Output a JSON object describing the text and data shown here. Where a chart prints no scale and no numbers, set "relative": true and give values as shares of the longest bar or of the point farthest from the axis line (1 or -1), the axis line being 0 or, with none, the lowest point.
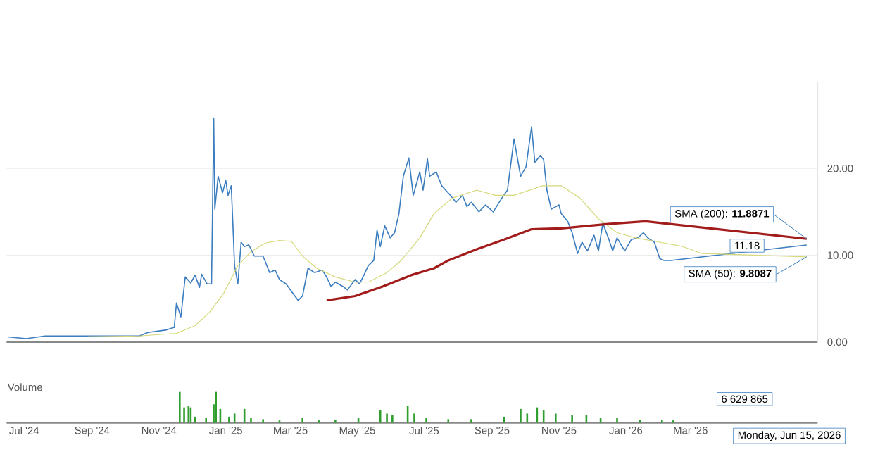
{
  "chart_data": [
    {
      "type": "line",
      "xlim": [
        "2024-06-15",
        "2026-06-25"
      ],
      "ylim": [
        0,
        30
      ],
      "yticks": [
        {
          "value": 0,
          "label": "0.00"
        },
        {
          "value": 10,
          "label": "10.00"
        },
        {
          "value": 20,
          "label": "20.00"
        }
      ],
      "grid": "y",
      "tick_labels": "y",
      "series": [
        {
          "color": "#3b7dbf",
          "x": [
            "2024-06-16",
            "2024-07-03",
            "2024-07-20",
            "2024-08-23",
            "2024-10-14",
            "2024-10-22",
            "2024-11-08",
            "2024-11-15",
            "2024-11-17",
            "2024-11-21",
            "2024-11-25",
            "2024-11-30",
            "2024-12-04",
            "2024-12-08",
            "2024-12-10",
            "2024-12-15",
            "2024-12-19",
            "2024-12-21",
            "2024-12-22",
            "2024-12-25",
            "2024-12-29",
            "2025-01-01",
            "2025-01-03",
            "2025-01-06",
            "2025-01-08",
            "2025-01-09",
            "2025-01-12",
            "2025-01-15",
            "2025-01-18",
            "2025-01-22",
            "2025-01-27",
            "2025-02-04",
            "2025-02-10",
            "2025-02-15",
            "2025-02-19",
            "2025-02-25",
            "2025-03-08",
            "2025-03-12",
            "2025-03-17",
            "2025-03-23",
            "2025-03-30",
            "2025-04-03",
            "2025-04-07",
            "2025-04-11",
            "2025-04-18",
            "2025-04-22",
            "2025-04-29",
            "2025-05-03",
            "2025-05-07",
            "2025-05-11",
            "2025-05-16",
            "2025-05-19",
            "2025-05-22",
            "2025-05-26",
            "2025-05-31",
            "2025-06-04",
            "2025-06-08",
            "2025-06-12",
            "2025-06-17",
            "2025-06-21",
            "2025-06-27",
            "2025-06-30",
            "2025-07-04",
            "2025-07-06",
            "2025-07-12",
            "2025-07-17",
            "2025-07-25",
            "2025-07-30",
            "2025-08-05",
            "2025-08-09",
            "2025-08-13",
            "2025-08-20",
            "2025-08-26",
            "2025-09-02",
            "2025-09-10",
            "2025-09-15",
            "2025-09-21",
            "2025-09-27",
            "2025-10-02",
            "2025-10-07",
            "2025-10-10",
            "2025-10-15",
            "2025-10-18",
            "2025-10-21",
            "2025-10-25",
            "2025-11-01",
            "2025-11-03",
            "2025-11-09",
            "2025-11-13",
            "2025-11-18",
            "2025-11-22",
            "2025-11-27",
            "2025-12-03",
            "2025-12-07",
            "2025-12-11",
            "2025-12-16",
            "2025-12-20",
            "2025-12-24",
            "2025-12-31",
            "2026-01-06",
            "2026-01-12",
            "2026-01-17",
            "2026-01-21",
            "2026-01-27",
            "2026-02-01",
            "2026-02-05",
            "2026-02-11",
            "2026-06-15"
          ],
          "values": [
            0.6,
            0.4,
            0.7,
            0.7,
            0.7,
            1.1,
            1.4,
            1.7,
            4.5,
            2.9,
            7.5,
            6.8,
            7.7,
            6.3,
            7.8,
            6.7,
            6.7,
            25.8,
            15.3,
            19.1,
            17.2,
            18.6,
            16.9,
            18,
            12,
            8.8,
            6.7,
            11.5,
            11,
            11.2,
            9.9,
            9.9,
            8,
            8.3,
            7.2,
            6.7,
            4.8,
            5.3,
            8.5,
            8,
            8.3,
            7.5,
            6.4,
            6.9,
            6.4,
            6,
            7.2,
            6.7,
            7.7,
            8.8,
            9.4,
            12.9,
            11,
            13.4,
            12,
            12.6,
            14.8,
            19.1,
            21.2,
            16.9,
            19.6,
            17.5,
            21.1,
            19.1,
            19.6,
            18,
            16.9,
            16.1,
            16.9,
            15.6,
            16.1,
            15,
            15.8,
            15,
            16.6,
            17.5,
            23.4,
            19.1,
            20.2,
            24.8,
            20.7,
            21.5,
            21,
            17.5,
            15.3,
            15.8,
            14.8,
            13.9,
            12.6,
            10.2,
            11.5,
            10.5,
            12.3,
            10.5,
            13.7,
            12,
            10.5,
            12,
            10.5,
            11.8,
            12,
            12.6,
            12,
            11.5,
            9.6,
            9.4,
            9.4,
            11.18
          ]
        },
        {
          "color": "#d6d87a",
          "x": [
            "2024-08-28",
            "2024-10-14",
            "2024-11-17",
            "2024-12-04",
            "2024-12-17",
            "2024-12-30",
            "2025-01-12",
            "2025-01-24",
            "2025-02-06",
            "2025-02-19",
            "2025-03-02",
            "2025-03-12",
            "2025-03-25",
            "2025-04-11",
            "2025-04-29",
            "2025-05-11",
            "2025-05-28",
            "2025-06-10",
            "2025-06-27",
            "2025-07-10",
            "2025-07-27",
            "2025-08-18",
            "2025-09-04",
            "2025-09-21",
            "2025-10-17",
            "2025-11-03",
            "2025-11-20",
            "2025-12-07",
            "2025-12-24",
            "2026-01-10",
            "2026-02-01",
            "2026-02-22",
            "2026-03-11",
            "2026-06-15"
          ],
          "values": [
            0.6,
            0.7,
            1,
            1.9,
            3.4,
            5.6,
            8.8,
            10.4,
            11.4,
            11.7,
            11.6,
            9.9,
            8.5,
            7.5,
            6.9,
            6.9,
            8,
            9.4,
            12,
            14.8,
            16.6,
            17.5,
            16.9,
            16.9,
            18,
            18,
            16.6,
            14.2,
            12.6,
            12,
            11.5,
            11,
            10.2,
            9.8087
          ]
        },
        {
          "color": "#a31c1c",
          "x": [
            "2025-04-03",
            "2025-04-29",
            "2025-05-24",
            "2025-06-19",
            "2025-07-10",
            "2025-07-23",
            "2025-08-18",
            "2025-09-12",
            "2025-10-07",
            "2025-11-03",
            "2025-12-16",
            "2026-01-19",
            "2026-06-15"
          ],
          "values": [
            4.8,
            5.3,
            6.4,
            7.7,
            8.5,
            9.4,
            10.7,
            11.8,
            13,
            13.1,
            13.6,
            13.9,
            11.8871
          ]
        }
      ],
      "annotations": [
        {
          "text": "SMA (200): **11.8871**",
          "x": "2026-06-15",
          "y": 11.8871
        },
        "11.18",
        {
          "text": "SMA (50): **9.8087**",
          "x": "2026-06-15",
          "y": 9.8087
        }
      ]
    },
    {
      "type": "bar",
      "title": "Volume",
      "relative": true,
      "xlim": [
        "2024-06-15",
        "2026-06-25"
      ],
      "tick_labels": "x",
      "xticks": [
        {
          "value": "2024-07-01",
          "label": "Jul '24"
        },
        {
          "value": "2024-09-01",
          "label": "Sep '24"
        },
        {
          "value": "2024-11-01",
          "label": "Nov '24"
        },
        {
          "value": "2025-01-01",
          "label": "Jan '25"
        },
        {
          "value": "2025-03-01",
          "label": "Mar '25"
        },
        {
          "value": "2025-05-01",
          "label": "May '25"
        },
        {
          "value": "2025-07-01",
          "label": "Jul '25"
        },
        {
          "value": "2025-09-01",
          "label": "Sep '25"
        },
        {
          "value": "2025-11-01",
          "label": "Nov '25"
        },
        {
          "value": "2026-01-01",
          "label": "Jan '26"
        },
        {
          "value": "2026-03-01",
          "label": "Mar '26"
        }
      ],
      "series": [
        {
          "color": "#2f9e2f",
          "x": [
            "2024-11-20",
            "2024-11-24",
            "2024-11-28",
            "2024-11-30",
            "2024-12-04",
            "2024-12-14",
            "2024-12-21",
            "2024-12-23",
            "2024-12-27",
            "2025-01-04",
            "2025-01-09",
            "2025-01-18",
            "2025-01-24",
            "2025-02-04",
            "2025-02-19",
            "2025-03-12",
            "2025-03-27",
            "2025-04-11",
            "2025-05-02",
            "2025-05-22",
            "2025-05-28",
            "2025-06-02",
            "2025-06-16",
            "2025-06-22",
            "2025-07-03",
            "2025-07-23",
            "2025-08-13",
            "2025-09-12",
            "2025-09-27",
            "2025-10-03",
            "2025-10-12",
            "2025-10-18",
            "2025-10-29",
            "2025-11-13",
            "2025-11-26",
            "2025-12-09",
            "2025-12-24",
            "2026-01-14",
            "2026-02-03",
            "2026-02-13"
          ],
          "values": [
            1,
            0.5,
            0.55,
            0.5,
            0.2,
            0.15,
            0.6,
            1,
            0.45,
            0.2,
            0.3,
            0.45,
            0.15,
            0.12,
            0.08,
            0.15,
            0.08,
            0.1,
            0.15,
            0.4,
            0.3,
            0.25,
            0.55,
            0.3,
            0.15,
            0.12,
            0.12,
            0.2,
            0.45,
            0.3,
            0.5,
            0.4,
            0.3,
            0.25,
            0.25,
            0.15,
            0.15,
            0.1,
            0.1,
            0.08
          ]
        }
      ],
      "annotations": [
        "6 629 865",
        "Monday, Jun 15, 2026"
      ]
    }
  ]
}
